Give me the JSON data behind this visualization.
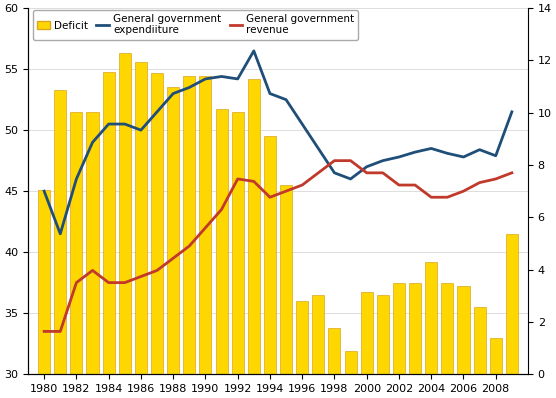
{
  "years": [
    1980,
    1981,
    1982,
    1983,
    1984,
    1985,
    1986,
    1987,
    1988,
    1989,
    1990,
    1991,
    1992,
    1993,
    1994,
    1995,
    1996,
    1997,
    1998,
    1999,
    2000,
    2001,
    2002,
    2003,
    2004,
    2005,
    2006,
    2007,
    2008,
    2009
  ],
  "deficit": [
    45.1,
    53.3,
    51.5,
    51.5,
    54.8,
    56.3,
    55.6,
    54.7,
    53.5,
    54.4,
    54.4,
    51.7,
    51.5,
    54.2,
    49.5,
    45.5,
    36.0,
    36.5,
    33.8,
    31.9,
    36.7,
    36.5,
    37.5,
    37.5,
    39.2,
    37.5,
    37.2,
    35.5,
    33.0,
    41.5
  ],
  "expenditure": [
    45.0,
    41.5,
    46.0,
    49.0,
    50.5,
    50.5,
    50.0,
    51.5,
    53.0,
    53.5,
    54.2,
    54.4,
    54.2,
    56.5,
    53.0,
    52.5,
    50.5,
    48.5,
    46.5,
    46.0,
    47.0,
    47.5,
    47.8,
    48.2,
    48.5,
    48.1,
    47.8,
    48.4,
    47.9,
    51.5
  ],
  "revenue": [
    33.5,
    33.5,
    37.5,
    38.5,
    37.5,
    37.5,
    38.0,
    38.5,
    39.5,
    40.5,
    42.0,
    43.5,
    46.0,
    45.8,
    44.5,
    45.0,
    45.5,
    46.5,
    47.5,
    47.5,
    46.5,
    46.5,
    45.5,
    45.5,
    44.5,
    44.5,
    45.0,
    45.7,
    46.0,
    46.5
  ],
  "bar_color": "#FFD700",
  "bar_edge_color": "#DAA520",
  "line_expenditure_color": "#1F4E79",
  "line_revenue_color": "#C0392B",
  "ylim_left": [
    30,
    60
  ],
  "ylim_right": [
    0,
    14
  ],
  "yticks_left": [
    30,
    35,
    40,
    45,
    50,
    55,
    60
  ],
  "yticks_right": [
    0,
    2,
    4,
    6,
    8,
    10,
    12,
    14
  ],
  "legend_label_deficit": "Deficit",
  "legend_label_expenditure": "General government\nexpendiiture",
  "legend_label_revenue": "General government\nrevenue",
  "bg_color": "#FFFFFF",
  "grid_color": "#D0D0D0"
}
